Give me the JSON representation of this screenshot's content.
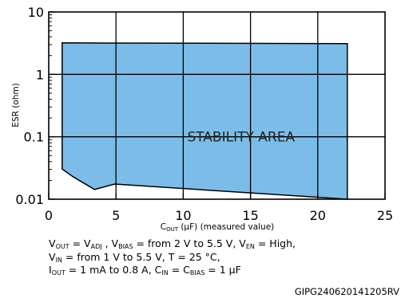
{
  "chart_data": {
    "type": "area",
    "title": "",
    "xlabel": {
      "main": "C",
      "sub": "OUT",
      "rest": " (µF) (measured value)"
    },
    "ylabel": "ESR (ohm)",
    "xlim": [
      0,
      25
    ],
    "ylim": [
      0.01,
      10
    ],
    "y_scale": "log",
    "grid": true,
    "x_ticks": [
      0,
      5,
      10,
      15,
      20,
      25
    ],
    "y_ticks": [
      {
        "value": 10,
        "label": "10"
      },
      {
        "value": 1,
        "label": "1"
      },
      {
        "value": 0.1,
        "label": "0.1"
      },
      {
        "value": 0.01,
        "label": "0.01"
      }
    ],
    "fill_color": "#7bbde8",
    "region_label": "STABILITY AREA",
    "region_label_position": {
      "x": 10.3,
      "y": 0.1
    },
    "region_boundary": [
      {
        "x": 1.0,
        "y": 3.2
      },
      {
        "x": 22.2,
        "y": 3.1
      },
      {
        "x": 22.2,
        "y": 0.01
      },
      {
        "x": 4.9,
        "y": 0.0175
      },
      {
        "x": 3.4,
        "y": 0.0143
      },
      {
        "x": 1.8,
        "y": 0.023
      },
      {
        "x": 1.0,
        "y": 0.0305
      }
    ]
  },
  "notes": [
    [
      {
        "t": "V"
      },
      {
        "s": "OUT"
      },
      {
        "t": " = V"
      },
      {
        "s": "ADJ"
      },
      {
        "t": " , V"
      },
      {
        "s": "BIAS"
      },
      {
        "t": " = from 2 V to 5.5 V, V"
      },
      {
        "s": "EN"
      },
      {
        "t": " = High,"
      }
    ],
    [
      {
        "t": "V"
      },
      {
        "s": "IN"
      },
      {
        "t": " = from 1 V to 5.5 V, T = 25 °C,"
      }
    ],
    [
      {
        "t": "I"
      },
      {
        "s": "OUT"
      },
      {
        "t": " = 1 mA to 0.8 A, C"
      },
      {
        "s": "IN"
      },
      {
        "t": " = C"
      },
      {
        "s": "BIAS"
      },
      {
        "t": " = 1 µF"
      }
    ]
  ],
  "figure_code": "GIPG240620141205RV"
}
